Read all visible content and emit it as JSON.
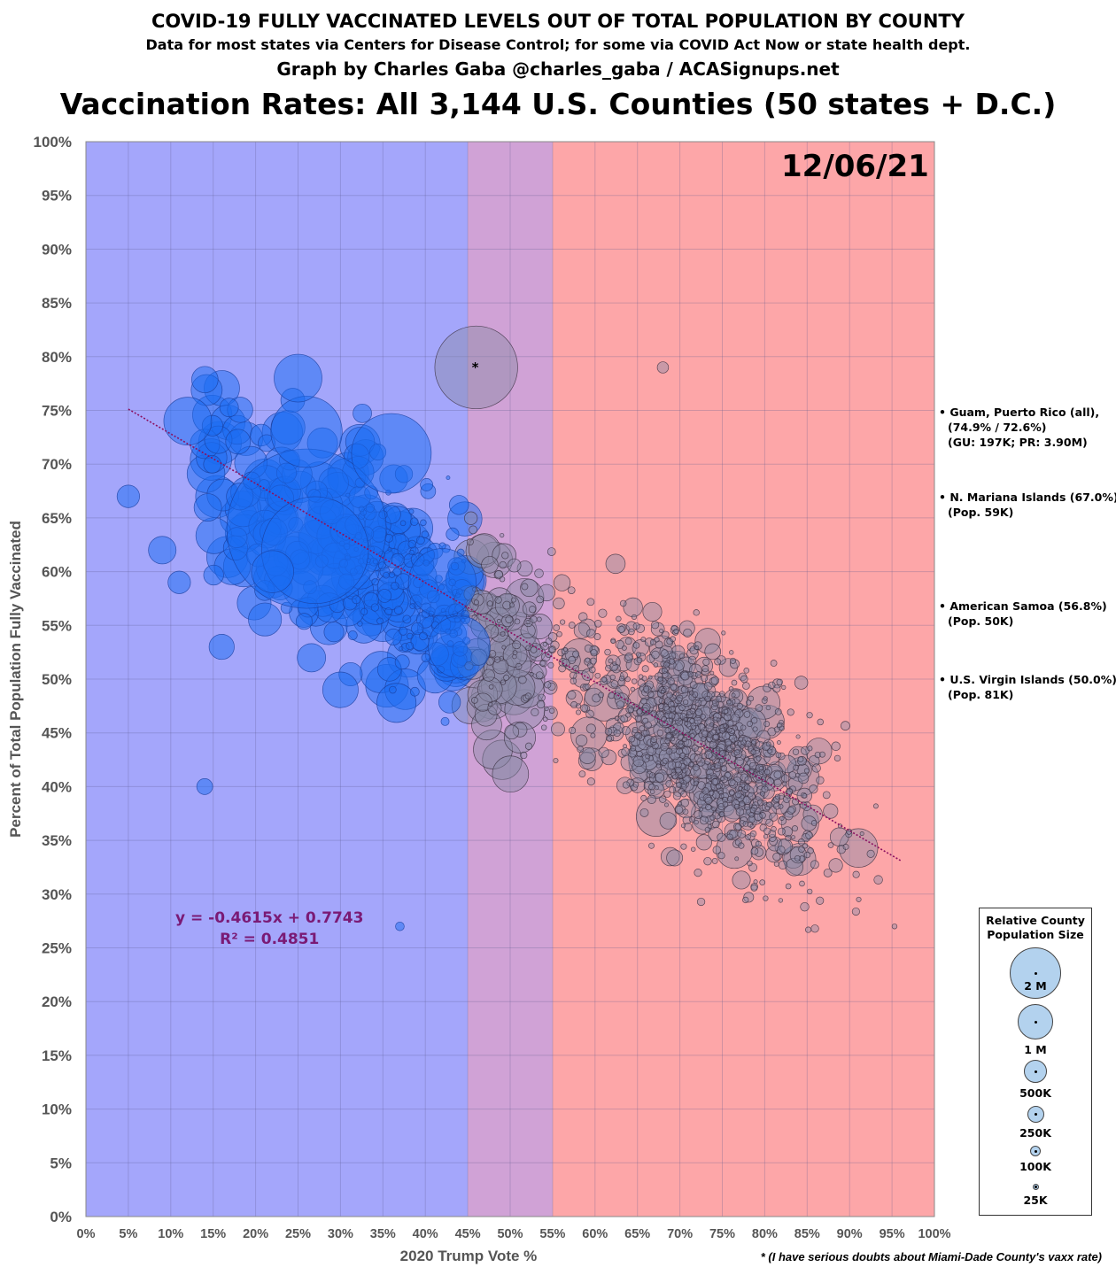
{
  "header": {
    "title": "COVID-19 FULLY VACCINATED LEVELS OUT OF TOTAL POPULATION BY COUNTY",
    "subtitle": "Data for most states via Centers for Disease Control; for some via COVID Act Now or state health dept.",
    "credit": "Graph by Charles Gaba @charles_gaba / ACASignups.net",
    "main_title": "Vaccination Rates: All 3,144 U.S. Counties (50 states + D.C.)"
  },
  "date_label": "12/06/21",
  "equation": {
    "line1": "y = -0.4615x + 0.7743",
    "line2": "R² = 0.4851"
  },
  "footnote": "* (I have serious doubts  about Miami-Dade County's vaxx rate)",
  "asterisk": "*",
  "territories": [
    {
      "name": "• Guam, Puerto Rico (all),",
      "lines": [
        "(74.9% / 72.6%)",
        "(GU: 197K; PR: 3.90M)"
      ],
      "y": 74.9
    },
    {
      "name": "• N. Mariana Islands (67.0%)",
      "lines": [
        "(Pop. 59K)"
      ],
      "y": 67.0
    },
    {
      "name": "• American Samoa (56.8%)",
      "lines": [
        "(Pop. 50K)"
      ],
      "y": 56.8
    },
    {
      "name": "• U.S. Virgin Islands (50.0%)",
      "lines": [
        "(Pop. 81K)"
      ],
      "y": 50.0
    }
  ],
  "legend": {
    "title_line1": "Relative County",
    "title_line2": "Population Size",
    "items": [
      "2 M",
      "1 M",
      "500K",
      "250K",
      "100K",
      "25K"
    ]
  },
  "colors": {
    "blue_zone": "#a4a6fb",
    "purple_zone": "#d0a2d6",
    "red_zone": "#fda6a8",
    "blue_bubble": "#1a6bf2",
    "grey_bubble": "#8a8aa6",
    "trend": "#8b1060"
  },
  "chart_data": {
    "type": "scatter",
    "title": "Vaccination Rates: All 3,144 U.S. Counties (50 states + D.C.)",
    "xlabel": "2020 Trump Vote %",
    "ylabel": "Percent of Total Population Fully Vaccinated",
    "xlim": [
      0,
      100
    ],
    "ylim": [
      0,
      100
    ],
    "x_ticks": [
      "0%",
      "5%",
      "10%",
      "15%",
      "20%",
      "25%",
      "30%",
      "35%",
      "40%",
      "45%",
      "50%",
      "55%",
      "60%",
      "65%",
      "70%",
      "75%",
      "80%",
      "85%",
      "90%",
      "95%",
      "100%"
    ],
    "y_ticks": [
      "0%",
      "5%",
      "10%",
      "15%",
      "20%",
      "25%",
      "30%",
      "35%",
      "40%",
      "45%",
      "50%",
      "55%",
      "60%",
      "65%",
      "70%",
      "75%",
      "80%",
      "85%",
      "90%",
      "95%",
      "100%"
    ],
    "zones": [
      {
        "from": 0,
        "to": 45,
        "color": "blue"
      },
      {
        "from": 45,
        "to": 55,
        "color": "purple"
      },
      {
        "from": 55,
        "to": 100,
        "color": "red"
      }
    ],
    "trendline": {
      "slope": -0.4615,
      "intercept": 0.7743,
      "x_range": [
        5,
        96
      ]
    },
    "grid": true,
    "notable_points": [
      {
        "x": 26,
        "y": 64,
        "pop_k": 10000
      },
      {
        "x": 27,
        "y": 62,
        "pop_k": 4500
      },
      {
        "x": 36,
        "y": 71,
        "pop_k": 2500
      },
      {
        "x": 26,
        "y": 73,
        "pop_k": 2000
      },
      {
        "x": 46,
        "y": 79,
        "pop_k": 2700
      },
      {
        "x": 25,
        "y": 78,
        "pop_k": 900
      },
      {
        "x": 12,
        "y": 74,
        "pop_k": 900
      },
      {
        "x": 22,
        "y": 60,
        "pop_k": 700
      },
      {
        "x": 5,
        "y": 67,
        "pop_k": 200
      },
      {
        "x": 9,
        "y": 62,
        "pop_k": 300
      },
      {
        "x": 11,
        "y": 59,
        "pop_k": 200
      },
      {
        "x": 16,
        "y": 53,
        "pop_k": 250
      },
      {
        "x": 14,
        "y": 40,
        "pop_k": 100
      },
      {
        "x": 30,
        "y": 49,
        "pop_k": 500
      },
      {
        "x": 44,
        "y": 53,
        "pop_k": 1500
      },
      {
        "x": 42,
        "y": 59,
        "pop_k": 1800
      },
      {
        "x": 68,
        "y": 79,
        "pop_k": 50
      },
      {
        "x": 37,
        "y": 27,
        "pop_k": 30
      }
    ],
    "cloud_description_counts": {
      "total_counties": 3144
    }
  }
}
